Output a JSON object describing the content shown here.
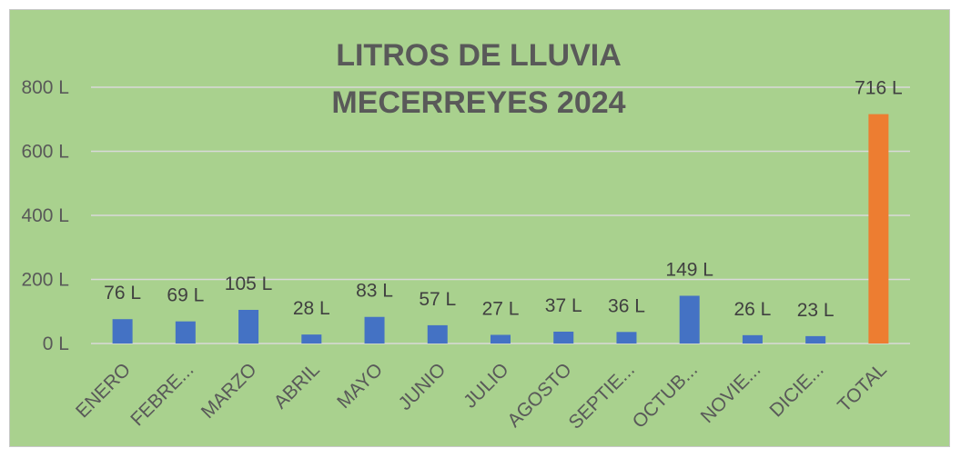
{
  "chart_data": {
    "type": "bar",
    "title": [
      "LITROS DE LLUVIA",
      "MECERREYES 2024"
    ],
    "xlabel": "",
    "ylabel": "",
    "categories": [
      "ENERO",
      "FEBRE...",
      "MARZO",
      "ABRIL",
      "MAYO",
      "JUNIO",
      "JULIO",
      "AGOSTO",
      "SEPTIE...",
      "OCTUB...",
      "NOVIE...",
      "DICIE...",
      "TOTAL"
    ],
    "values": [
      76,
      69,
      105,
      28,
      83,
      57,
      27,
      37,
      36,
      149,
      26,
      23,
      716
    ],
    "value_labels": [
      "76 L",
      "69 L",
      "105 L",
      "28 L",
      "83 L",
      "57 L",
      "27 L",
      "37 L",
      "36 L",
      "149 L",
      "26 L",
      "23 L",
      "716 L"
    ],
    "ylim": [
      0,
      800
    ],
    "yticks": [
      0,
      200,
      400,
      600,
      800
    ],
    "ytick_labels": [
      "0 L",
      "200 L",
      "400 L",
      "600 L",
      "800 L"
    ],
    "grid": true,
    "legend": "none",
    "colors": {
      "background": "#a9d18e",
      "bar": "#4472c4",
      "total_bar": "#ed7d31",
      "gridline": "#d9d9d9",
      "text": "#595959"
    }
  }
}
